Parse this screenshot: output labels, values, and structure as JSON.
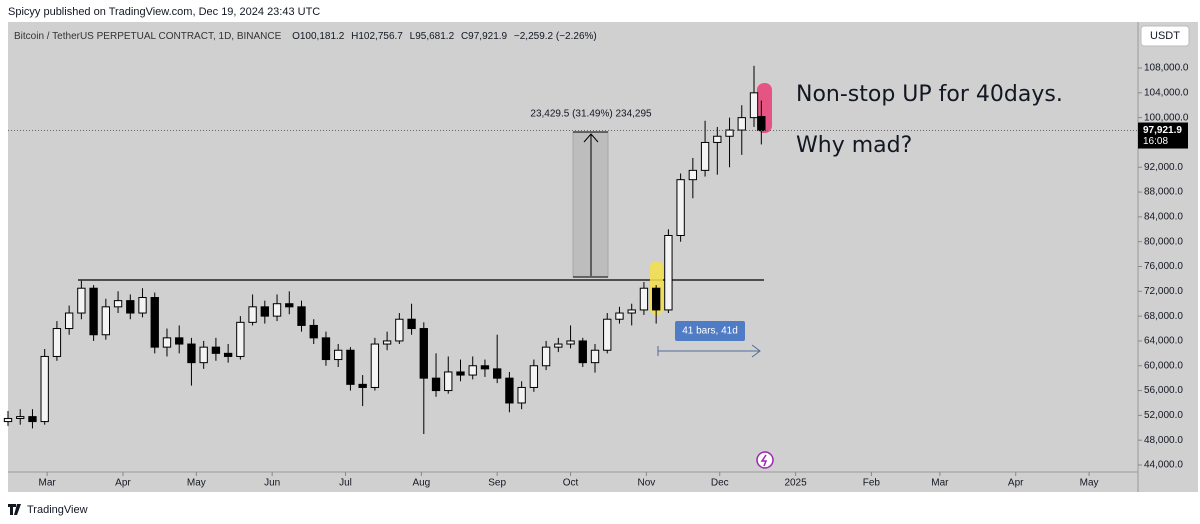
{
  "header": {
    "published": "Spicyy published on TradingView.com, Dec 19, 2024 23:43 UTC",
    "brand": "TradingView"
  },
  "chart_data": {
    "type": "candlestick",
    "title": "Bitcoin / TetherUS PERPETUAL CONTRACT, 1D, BINANCE",
    "ohlc_items": [
      "O",
      "100,181.2",
      "H",
      "102,756.7",
      "L",
      "95,681.2",
      "C",
      "97,921.9",
      "−2,259.2 (−2.26%)"
    ],
    "currency": "USDT",
    "price_label": "97,921.9",
    "countdown": "16:08",
    "annotations": {
      "measure": "23,429.5 (31.49%) 234,295",
      "range": "41 bars, 41d",
      "note_1": "Non-stop UP for 40days.",
      "note_2": "Why mad?"
    },
    "up_color": "#f4f4f4",
    "down_color": "#000000",
    "x": [
      0,
      5,
      10,
      15,
      20,
      25,
      30,
      35,
      40,
      45,
      50,
      55,
      60,
      65,
      70,
      75,
      80,
      85,
      90,
      95,
      100,
      105,
      110,
      115,
      120,
      125,
      130,
      135,
      140,
      145,
      150,
      155,
      160,
      165,
      170,
      175,
      180,
      185,
      190,
      195,
      200,
      205,
      210,
      215,
      220,
      225,
      230,
      235,
      240,
      245,
      250,
      255,
      260,
      265,
      270,
      275,
      280,
      285,
      290,
      295,
      300,
      305,
      308
    ],
    "open": [
      51000,
      51500,
      51800,
      51000,
      61500,
      66000,
      68500,
      72500,
      65000,
      69500,
      70500,
      68500,
      71000,
      63000,
      64500,
      63500,
      60500,
      63000,
      62000,
      61500,
      67000,
      69500,
      68000,
      70000,
      69500,
      66500,
      64500,
      61000,
      62500,
      57000,
      56500,
      63500,
      64000,
      67500,
      66000,
      58000,
      56000,
      59000,
      58500,
      60000,
      59500,
      58000,
      54000,
      56500,
      60000,
      63000,
      63500,
      64000,
      60500,
      62500,
      67500,
      68500,
      69000,
      72500,
      69000,
      81000,
      90000,
      91500,
      96000,
      97000,
      98000,
      100000,
      100181.2
    ],
    "high": [
      52700,
      53000,
      53000,
      62700,
      67200,
      69700,
      73700,
      73000,
      70800,
      72000,
      71500,
      72500,
      71800,
      66000,
      66500,
      64500,
      64000,
      64500,
      63500,
      68000,
      71500,
      70500,
      71500,
      72000,
      70500,
      67500,
      65500,
      63500,
      63000,
      58500,
      64500,
      65500,
      68500,
      70000,
      67000,
      62000,
      61500,
      61000,
      61500,
      61000,
      65000,
      59000,
      57500,
      61000,
      64000,
      64500,
      66500,
      64500,
      63500,
      68500,
      69500,
      70000,
      73500,
      73000,
      82000,
      91000,
      93500,
      99500,
      98500,
      100000,
      102000,
      108353,
      102756.7
    ],
    "low": [
      50300,
      50500,
      49900,
      50500,
      60800,
      65000,
      67500,
      64000,
      64200,
      68500,
      67500,
      67800,
      62000,
      61500,
      62000,
      56800,
      59500,
      60800,
      60500,
      61000,
      66500,
      66800,
      67200,
      68300,
      65500,
      63500,
      60000,
      59800,
      56000,
      53500,
      56000,
      62500,
      63500,
      65000,
      49000,
      55000,
      55500,
      57500,
      57800,
      58200,
      57200,
      52500,
      53000,
      55800,
      59300,
      62200,
      62800,
      59800,
      58900,
      62000,
      66800,
      66500,
      68200,
      66800,
      68500,
      80000,
      87000,
      90500,
      90800,
      92000,
      94000,
      98500,
      95681.2
    ],
    "close": [
      51500,
      51800,
      51000,
      61500,
      66000,
      68500,
      72500,
      65000,
      69500,
      70500,
      68500,
      71000,
      63000,
      64500,
      63500,
      60500,
      63000,
      62000,
      61500,
      67000,
      69500,
      68000,
      70000,
      69500,
      66500,
      64500,
      61000,
      62500,
      57000,
      56500,
      63500,
      64000,
      67500,
      66000,
      58000,
      56000,
      59000,
      58500,
      60000,
      59500,
      58000,
      54000,
      56500,
      60000,
      63000,
      63500,
      64000,
      60500,
      62500,
      67500,
      68500,
      69000,
      72500,
      69000,
      81000,
      90000,
      91500,
      96000,
      97000,
      98000,
      100000,
      104000,
      97921.9
    ],
    "xlim": [
      0,
      462
    ],
    "xticks": [
      {
        "value": 16,
        "label": "Mar"
      },
      {
        "value": 47,
        "label": "Apr"
      },
      {
        "value": 77,
        "label": "May"
      },
      {
        "value": 108,
        "label": "Jun"
      },
      {
        "value": 138,
        "label": "Jul"
      },
      {
        "value": 169,
        "label": "Aug"
      },
      {
        "value": 200,
        "label": "Sep"
      },
      {
        "value": 230,
        "label": "Oct"
      },
      {
        "value": 261,
        "label": "Nov"
      },
      {
        "value": 291,
        "label": "Dec"
      },
      {
        "value": 322,
        "label": "2025"
      },
      {
        "value": 353,
        "label": "Feb"
      },
      {
        "value": 381,
        "label": "Mar"
      },
      {
        "value": 412,
        "label": "Apr"
      },
      {
        "value": 442,
        "label": "May"
      }
    ],
    "ylim": [
      42871,
      115419
    ],
    "yticks": [
      {
        "value": 44000,
        "label": "44,000.0"
      },
      {
        "value": 48000,
        "label": "48,000.0"
      },
      {
        "value": 52000,
        "label": "52,000.0"
      },
      {
        "value": 56000,
        "label": "56,000.0"
      },
      {
        "value": 60000,
        "label": "60,000.0"
      },
      {
        "value": 64000,
        "label": "64,000.0"
      },
      {
        "value": 68000,
        "label": "68,000.0"
      },
      {
        "value": 72000,
        "label": "72,000.0"
      },
      {
        "value": 76000,
        "label": "76,000.0"
      },
      {
        "value": 80000,
        "label": "80,000.0"
      },
      {
        "value": 84000,
        "label": "84,000.0"
      },
      {
        "value": 88000,
        "label": "88,000.0"
      },
      {
        "value": 92000,
        "label": "92,000.0"
      },
      {
        "value": 96000,
        "label": "96,000.0"
      },
      {
        "value": 100000,
        "label": "100,000.0"
      },
      {
        "value": 104000,
        "label": "104,000.0"
      },
      {
        "value": 108000,
        "label": "108,000.0"
      }
    ]
  }
}
